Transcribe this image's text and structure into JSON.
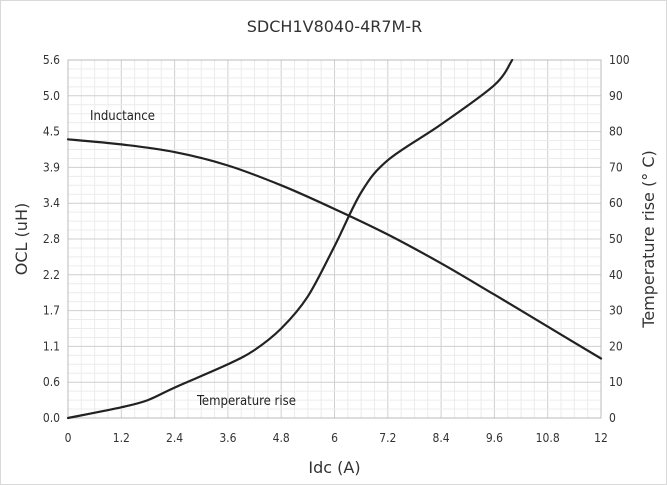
{
  "chart_data": {
    "type": "line",
    "title": "SDCH1V8040-4R7M-R",
    "xlabel": "Idc (A)",
    "ylabel_left": "OCL (uH)",
    "ylabel_right": "Temperature rise (° C)",
    "xlim": [
      0,
      12
    ],
    "ylim_left": [
      0,
      5.6
    ],
    "ylim_right": [
      0,
      100
    ],
    "x_ticks": [
      "0",
      "1.2",
      "2.4",
      "3.6",
      "4.8",
      "6",
      "7.2",
      "8.4",
      "9.6",
      "10.8",
      "12"
    ],
    "y_left_ticks": [
      "0.0",
      "0.6",
      "1.1",
      "1.7",
      "2.2",
      "2.8",
      "3.4",
      "3.9",
      "4.5",
      "5.0",
      "5.6"
    ],
    "y_right_ticks": [
      "0",
      "10",
      "20",
      "30",
      "40",
      "50",
      "60",
      "70",
      "80",
      "90",
      "100"
    ],
    "grid": true,
    "series": [
      {
        "name": "Inductance",
        "axis": "left",
        "color": "#222222",
        "x": [
          0,
          1.2,
          2.4,
          3.6,
          4.8,
          6,
          7.2,
          8.4,
          9.6,
          10.8,
          12
        ],
        "y": [
          4.36,
          4.28,
          4.16,
          3.95,
          3.64,
          3.27,
          2.87,
          2.42,
          1.93,
          1.43,
          0.93
        ]
      },
      {
        "name": "Temperature rise",
        "axis": "right",
        "color": "#222222",
        "x": [
          0,
          1.2,
          1.8,
          2.4,
          3.6,
          4.2,
          4.8,
          5.4,
          6,
          6.6,
          7.2,
          8.4,
          9.6,
          10
        ],
        "y": [
          0,
          3,
          5,
          8.5,
          15,
          19,
          25,
          34,
          48,
          63,
          72,
          82,
          93,
          100
        ]
      }
    ],
    "annotations": [
      "Inductance",
      "Temperature rise"
    ]
  }
}
